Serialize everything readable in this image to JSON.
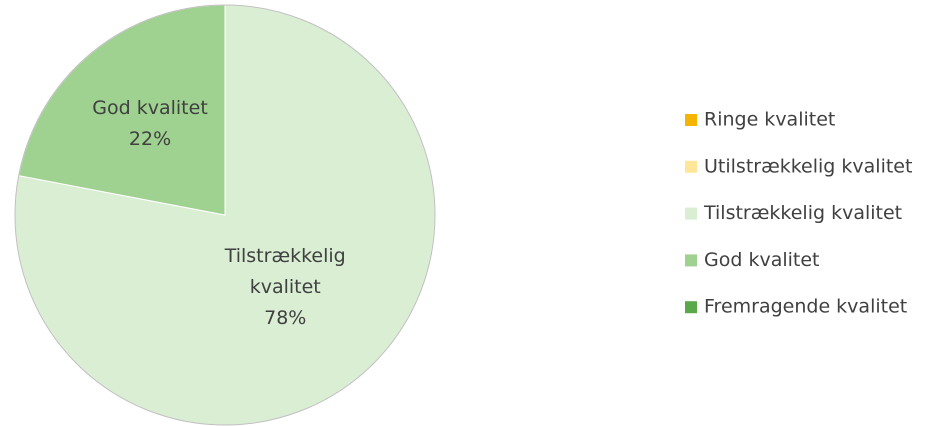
{
  "chart_data": {
    "type": "pie",
    "categories": [
      "Ringe kvalitet",
      "Utilstrækkelig kvalitet",
      "Tilstrækkelig kvalitet",
      "God kvalitet",
      "Fremragende kvalitet"
    ],
    "values": [
      0,
      0,
      78,
      22,
      0
    ],
    "value_labels": [
      null,
      null,
      "78%",
      "22%",
      null
    ],
    "colors": [
      "#f5b400",
      "#ffe699",
      "#d9eed3",
      "#9fd190",
      "#5aa84a"
    ],
    "legend": "right"
  }
}
